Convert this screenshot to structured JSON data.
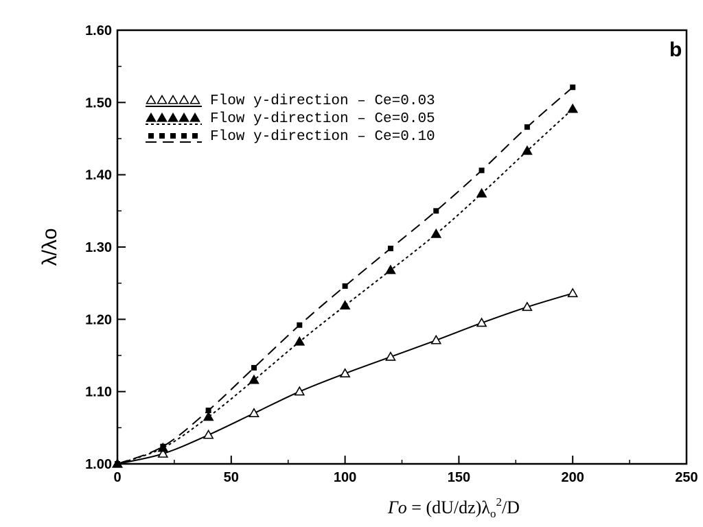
{
  "chart_data": {
    "type": "line",
    "panel_label": "b",
    "ylabel": "λ/λo",
    "xlabel": {
      "symbol": "Γo",
      "equals": "  = (dU/dz)λ",
      "sub": "o",
      "sup": "2",
      "tail": "/D"
    },
    "xlim": [
      0,
      250
    ],
    "ylim": [
      1.0,
      1.6
    ],
    "x_ticks": [
      0,
      50,
      100,
      150,
      200,
      250
    ],
    "x_tick_labels": [
      "0",
      "50",
      "100",
      "150",
      "200",
      "250"
    ],
    "y_ticks": [
      1.0,
      1.1,
      1.2,
      1.3,
      1.4,
      1.5,
      1.6
    ],
    "y_tick_labels": [
      "1.00",
      "1.10",
      "1.20",
      "1.30",
      "1.40",
      "1.50",
      "1.60"
    ],
    "grid": false,
    "legend_position": "top-left",
    "series": [
      {
        "name": "Flow  y-direction  –  Ce=0.03",
        "marker": "triangle-open",
        "line_style": "solid",
        "x": [
          0,
          20,
          40,
          60,
          80,
          100,
          120,
          140,
          160,
          180,
          200
        ],
        "y": [
          1.0,
          1.014,
          1.04,
          1.07,
          1.1,
          1.125,
          1.148,
          1.171,
          1.195,
          1.217,
          1.236
        ]
      },
      {
        "name": "Flow  y-direction  –  Ce=0.05",
        "marker": "triangle-filled",
        "line_style": "dotted",
        "x": [
          0,
          20,
          40,
          60,
          80,
          100,
          120,
          140,
          160,
          180,
          200
        ],
        "y": [
          1.0,
          1.022,
          1.065,
          1.116,
          1.169,
          1.219,
          1.268,
          1.318,
          1.374,
          1.433,
          1.491
        ]
      },
      {
        "name": "Flow  y-direction  –  Ce=0.10",
        "marker": "square-filled",
        "line_style": "dashed",
        "x": [
          0,
          20,
          40,
          60,
          80,
          100,
          120,
          140,
          160,
          180,
          200
        ],
        "y": [
          1.0,
          1.024,
          1.074,
          1.133,
          1.192,
          1.246,
          1.298,
          1.35,
          1.406,
          1.466,
          1.521
        ]
      }
    ]
  }
}
